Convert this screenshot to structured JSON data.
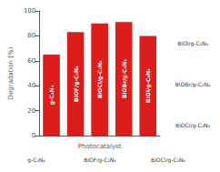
{
  "chart_data": {
    "type": "bar",
    "categories": [
      "g-C₃N₄",
      "BiOF/g-C₃N₄",
      "BiOCl/g-C₃N₄",
      "BiOBr/g-C₃N₄",
      "BiOI/g-C₃N₄"
    ],
    "values": [
      65,
      83,
      90,
      91,
      80
    ],
    "color": "#dd1c1c",
    "xlabel": "Photocatalyst",
    "ylabel": "Degradation (%)",
    "ylim": [
      0,
      100
    ],
    "yticks": [
      0,
      20,
      40,
      60,
      80,
      100
    ],
    "grid": false,
    "tick_labels": "y",
    "annotations": [
      "g-C₃N₄",
      "BiOF/g-C₃N₄",
      "BiOCl/g-C₃N₄",
      "BiOI/g-C₃N₄",
      "BiOBr/g-C₃N₄",
      "BiOCl/g-C₃N₄"
    ]
  }
}
